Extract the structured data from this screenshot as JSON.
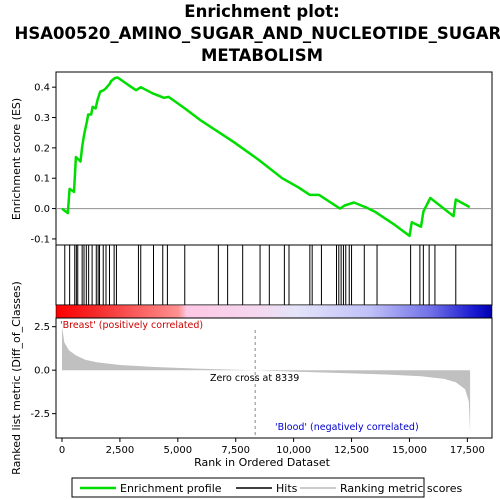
{
  "chart_data": {
    "type": "line",
    "title_line1": "Enrichment plot:",
    "title_line2": "HSA00520_AMINO_SUGAR_AND_NUCLEOTIDE_SUGAR_",
    "title_line3": "METABOLISM",
    "top_panel": {
      "ylabel": "Enrichment score (ES)",
      "ylim": [
        -0.12,
        0.45
      ],
      "yticks": [
        -0.1,
        0.0,
        0.1,
        0.2,
        0.3,
        0.4
      ],
      "ytick_labels": [
        "-0.1",
        "0.0",
        "0.1",
        "0.2",
        "0.3",
        "0.4"
      ],
      "series_name": "Enrichment profile",
      "color": "#00dd00",
      "es_points": [
        [
          0,
          0.0
        ],
        [
          250,
          -0.015
        ],
        [
          330,
          0.065
        ],
        [
          520,
          0.055
        ],
        [
          560,
          0.115
        ],
        [
          600,
          0.17
        ],
        [
          800,
          0.155
        ],
        [
          870,
          0.205
        ],
        [
          960,
          0.245
        ],
        [
          1070,
          0.285
        ],
        [
          1130,
          0.31
        ],
        [
          1260,
          0.31
        ],
        [
          1320,
          0.335
        ],
        [
          1450,
          0.33
        ],
        [
          1540,
          0.36
        ],
        [
          1650,
          0.385
        ],
        [
          1800,
          0.39
        ],
        [
          1880,
          0.395
        ],
        [
          2050,
          0.41
        ],
        [
          2120,
          0.42
        ],
        [
          2280,
          0.43
        ],
        [
          2400,
          0.432
        ],
        [
          3000,
          0.4
        ],
        [
          3200,
          0.39
        ],
        [
          3400,
          0.4
        ],
        [
          3900,
          0.38
        ],
        [
          4400,
          0.365
        ],
        [
          4600,
          0.368
        ],
        [
          5300,
          0.33
        ],
        [
          6000,
          0.29
        ],
        [
          6800,
          0.25
        ],
        [
          7400,
          0.22
        ],
        [
          8500,
          0.16
        ],
        [
          9500,
          0.1
        ],
        [
          10200,
          0.07
        ],
        [
          10700,
          0.045
        ],
        [
          11100,
          0.045
        ],
        [
          11500,
          0.025
        ],
        [
          12000,
          0.0
        ],
        [
          12200,
          0.01
        ],
        [
          12600,
          0.02
        ],
        [
          13100,
          0.005
        ],
        [
          13500,
          -0.01
        ],
        [
          14300,
          -0.05
        ],
        [
          15000,
          -0.09
        ],
        [
          15100,
          -0.045
        ],
        [
          15500,
          -0.06
        ],
        [
          15600,
          -0.01
        ],
        [
          15900,
          0.035
        ],
        [
          16900,
          -0.025
        ],
        [
          17000,
          0.03
        ],
        [
          17600,
          0.005
        ]
      ],
      "hits": [
        120,
        330,
        550,
        620,
        680,
        870,
        950,
        1050,
        1150,
        1300,
        1480,
        1560,
        1620,
        1780,
        1900,
        2050,
        2250,
        2350,
        3300,
        3400,
        3950,
        4350,
        4550,
        5300,
        6750,
        7150,
        7800,
        8550,
        8950,
        9600,
        9800,
        10700,
        10800,
        11200,
        11850,
        11950,
        12050,
        12150,
        12250,
        12400,
        12500,
        13050,
        13600,
        15050,
        15450,
        15600,
        15850,
        16100,
        17000
      ]
    },
    "bottom_panel": {
      "ylabel": "Ranked list metric (Diff_of_Classes)",
      "xlabel": "Rank in Ordered Dataset",
      "ylim": [
        -3.9,
        3.0
      ],
      "yticks": [
        -2.5,
        0.0,
        2.5
      ],
      "ytick_labels": [
        "-2.5",
        "0.0",
        "2.5"
      ],
      "metric_points": [
        [
          0,
          2.5
        ],
        [
          100,
          1.6
        ],
        [
          300,
          1.15
        ],
        [
          600,
          0.85
        ],
        [
          1000,
          0.6
        ],
        [
          1500,
          0.45
        ],
        [
          2500,
          0.3
        ],
        [
          4000,
          0.18
        ],
        [
          6000,
          0.08
        ],
        [
          8339,
          0.0
        ],
        [
          10000,
          -0.08
        ],
        [
          12000,
          -0.16
        ],
        [
          14000,
          -0.25
        ],
        [
          15500,
          -0.35
        ],
        [
          16500,
          -0.5
        ],
        [
          17000,
          -0.7
        ],
        [
          17400,
          -1.1
        ],
        [
          17560,
          -1.8
        ],
        [
          17620,
          -3.6
        ]
      ],
      "zero_cross_label": "Zero cross at 8339",
      "zero_cross_rank": 8339,
      "pos_label": "'Breast' (positively correlated)",
      "neg_label": "'Blood' (negatively correlated)"
    },
    "x_axis": {
      "xlim": [
        0,
        17700
      ],
      "xticks": [
        0,
        2500,
        5000,
        7500,
        10000,
        12500,
        15000,
        17500
      ],
      "xtick_labels": [
        "0",
        "2,500",
        "5,000",
        "7,500",
        "10,000",
        "12,500",
        "15,000",
        "17,500"
      ]
    },
    "legend": {
      "items": [
        {
          "label": "Enrichment profile",
          "color": "#00dd00"
        },
        {
          "label": "Hits",
          "color": "#000000"
        },
        {
          "label": "Ranking metric scores",
          "color": "#bbbbbb"
        }
      ]
    },
    "colors": {
      "pos_label": "#cc0000",
      "neg_label": "#0000cc",
      "metric_fill": "#c0c0c0"
    }
  }
}
